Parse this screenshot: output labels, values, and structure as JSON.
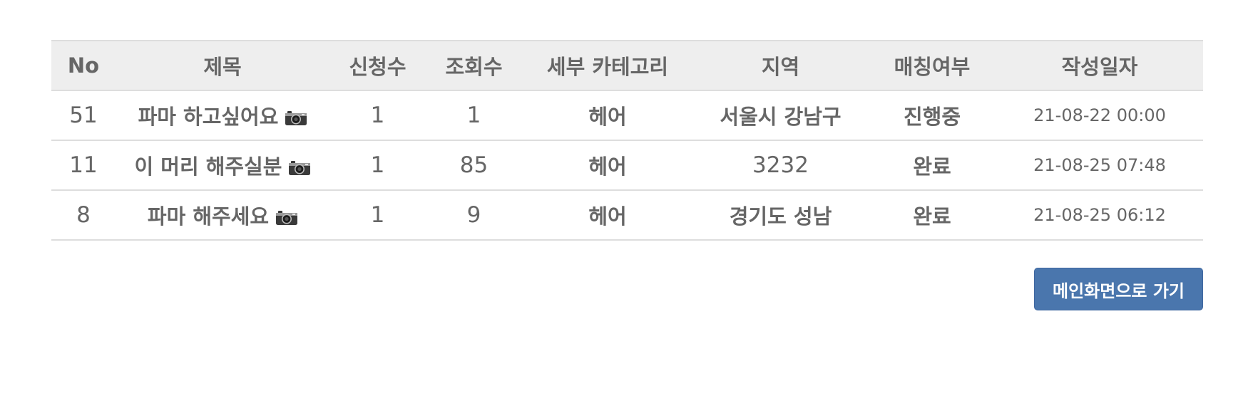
{
  "table": {
    "headers": {
      "no": "No",
      "title": "제목",
      "applicants": "신청수",
      "views": "조회수",
      "category": "세부 카테고리",
      "region": "지역",
      "matching": "매칭여부",
      "date": "작성일자"
    },
    "rows": [
      {
        "no": "51",
        "title": "파마 하고싶어요",
        "applicants": "1",
        "views": "1",
        "category": "헤어",
        "region": "서울시 강남구",
        "matching": "진행중",
        "date": "21-08-22 00:00",
        "icon": "camera-icon"
      },
      {
        "no": "11",
        "title": "이 머리 해주실분",
        "applicants": "1",
        "views": "85",
        "category": "헤어",
        "region": "3232",
        "matching": "완료",
        "date": "21-08-25 07:48",
        "icon": "camera-icon"
      },
      {
        "no": "8",
        "title": "파마 해주세요",
        "applicants": "1",
        "views": "9",
        "category": "헤어",
        "region": "경기도 성남",
        "matching": "완료",
        "date": "21-08-25 06:12",
        "icon": "camera-icon"
      }
    ]
  },
  "actions": {
    "main_button_label": "메인화면으로 가기"
  },
  "colors": {
    "header_bg": "#eeeeee",
    "border": "#dddddd",
    "text": "#666666",
    "button_bg": "#4a76ad",
    "button_text": "#ffffff"
  }
}
